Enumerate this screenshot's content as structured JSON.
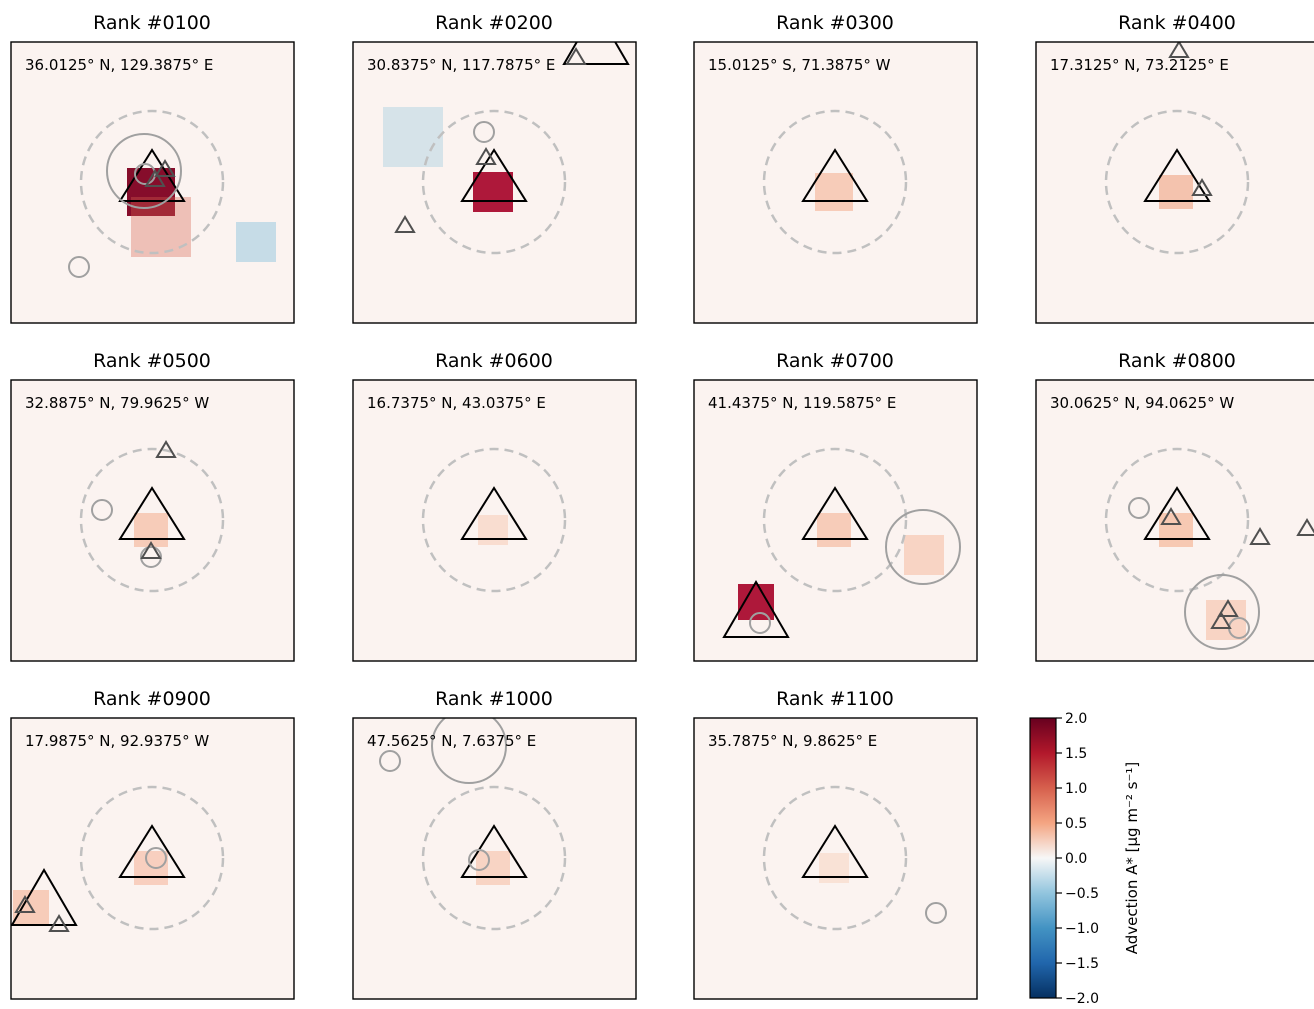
{
  "chart_data": {
    "type": "heatmap",
    "colormap": "RdBu_r",
    "colorbar": {
      "label": "Advection A* [μg m⁻² s⁻¹]",
      "ticks": [
        2.0,
        1.5,
        1.0,
        0.5,
        0.0,
        -0.5,
        -1.0,
        -1.5,
        -2.0
      ],
      "tick_labels": [
        "2.0",
        "1.5",
        "1.0",
        "0.5",
        "0.0",
        "−0.5",
        "−1.0",
        "−1.5",
        "−2.0"
      ],
      "range": [
        -2.0,
        2.0
      ]
    },
    "panels": [
      {
        "title": "Rank #0100",
        "coords": "36.0125° N, 129.3875° E"
      },
      {
        "title": "Rank #0200",
        "coords": "30.8375° N, 117.7875° E"
      },
      {
        "title": "Rank #0300",
        "coords": "15.0125° S, 71.3875° W"
      },
      {
        "title": "Rank #0400",
        "coords": "17.3125° N, 73.2125° E"
      },
      {
        "title": "Rank #0500",
        "coords": "32.8875° N, 79.9625° W"
      },
      {
        "title": "Rank #0600",
        "coords": "16.7375° N, 43.0375° E"
      },
      {
        "title": "Rank #0700",
        "coords": "41.4375° N, 119.5875° E"
      },
      {
        "title": "Rank #0800",
        "coords": "30.0625° N, 94.0625° W"
      },
      {
        "title": "Rank #0900",
        "coords": "17.9875° N, 92.9375° W"
      },
      {
        "title": "Rank #1000",
        "coords": "47.5625° N, 7.6375° E"
      },
      {
        "title": "Rank #1100",
        "coords": "35.7875° N, 9.8625° E"
      }
    ]
  }
}
